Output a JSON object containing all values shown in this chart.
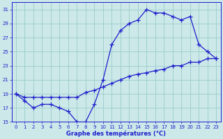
{
  "line1_x": [
    0,
    1,
    2,
    3,
    4,
    5,
    6,
    7,
    8,
    9,
    10,
    11,
    12,
    13,
    14,
    15,
    16,
    17,
    18,
    19,
    20,
    21,
    22,
    23
  ],
  "line1_y": [
    19,
    18,
    17,
    17.5,
    17.5,
    17,
    16.5,
    15,
    15,
    17.5,
    21,
    26,
    28,
    29,
    29.5,
    31,
    30.5,
    30.5,
    30,
    29.5,
    30,
    26,
    25,
    24
  ],
  "line2_x": [
    0,
    1,
    2,
    3,
    4,
    5,
    6,
    7,
    8,
    9,
    10,
    11,
    12,
    13,
    14,
    15,
    16,
    17,
    18,
    19,
    20,
    21,
    22,
    23
  ],
  "line2_y": [
    19,
    18.5,
    18.5,
    18.5,
    18.5,
    18.5,
    18.5,
    18.5,
    19.2,
    19.5,
    20,
    20.5,
    21,
    21.5,
    21.8,
    22,
    22.3,
    22.5,
    23,
    23,
    23.5,
    23.5,
    24,
    24
  ],
  "line_color": "#1c1ccc",
  "bg_color": "#cce8e8",
  "grid_color": "#99cccc",
  "xlabel": "Graphe des températures (°C)",
  "ylim": [
    15,
    32
  ],
  "xlim": [
    -0.5,
    23.5
  ],
  "yticks": [
    15,
    17,
    19,
    21,
    23,
    25,
    27,
    29,
    31
  ],
  "xticks": [
    0,
    1,
    2,
    3,
    4,
    5,
    6,
    7,
    8,
    9,
    10,
    11,
    12,
    13,
    14,
    15,
    16,
    17,
    18,
    19,
    20,
    21,
    22,
    23
  ]
}
